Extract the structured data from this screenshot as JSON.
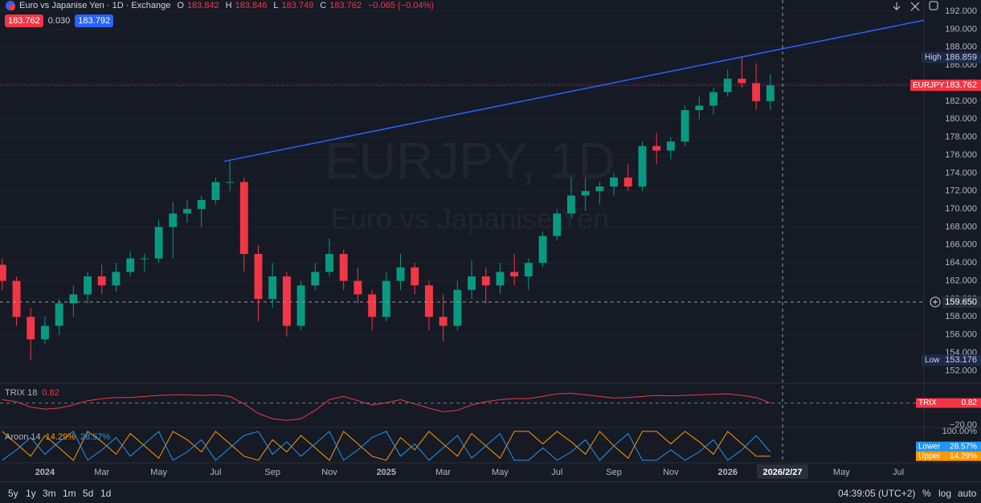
{
  "header": {
    "title": "Euro vs Japanise Yen · 1D · Exchange",
    "ohlc": [
      {
        "k": "O",
        "v": "183.842"
      },
      {
        "k": "H",
        "v": "183.846"
      },
      {
        "k": "L",
        "v": "183.749"
      },
      {
        "k": "C",
        "v": "183.762"
      }
    ],
    "change": "−0.065 (−0.04%)",
    "spread": "0.030",
    "ask": "183.792"
  },
  "watermark": {
    "symbol": "EURJPY, 1D",
    "description": "Euro vs Japanise Yen"
  },
  "toolbar": {
    "ranges": [
      "5y",
      "1y",
      "3m",
      "1m",
      "5d",
      "1d"
    ],
    "clock": "04:39:05 (UTC+2)",
    "options": [
      "%",
      "log",
      "auto"
    ]
  },
  "chart_data": [
    {
      "type": "candlestick",
      "symbol": "EURJPY",
      "x": [
        -1.5,
        -1,
        -0.5,
        0,
        0.5,
        1,
        1.5,
        2,
        2.5,
        3,
        3.5,
        4,
        4.5,
        5,
        5.5,
        6,
        6.5,
        7,
        7.5,
        8,
        8.5,
        9,
        9.5,
        10,
        10.5,
        11,
        11.5,
        12,
        12.5,
        13,
        13.5,
        14,
        14.5,
        15,
        15.5,
        16,
        16.5,
        17,
        17.5,
        18,
        18.5,
        19,
        19.5,
        20,
        20.5,
        21,
        21.5,
        22,
        22.5,
        23,
        23.5,
        24,
        24.5,
        25,
        25.5
      ],
      "open": [
        163.8,
        162,
        158,
        155.5,
        157,
        159.5,
        160.5,
        162.5,
        161.5,
        163,
        164.5,
        164.5,
        168,
        169.5,
        170,
        171,
        173,
        173,
        165,
        160,
        162.5,
        157,
        161.5,
        163,
        165,
        162,
        160.5,
        158,
        162,
        163.5,
        161.5,
        158,
        157,
        161,
        162.5,
        161.5,
        163,
        162.5,
        164,
        167,
        169.5,
        171.5,
        172,
        172.5,
        173.5,
        172.5,
        177,
        176.5,
        177.5,
        181,
        181.5,
        183,
        184.5,
        184,
        182
      ],
      "high": [
        164.5,
        162.5,
        159,
        158,
        160,
        161.5,
        163,
        163.8,
        164,
        165.3,
        165,
        168.8,
        170.8,
        171,
        171.5,
        173.5,
        175.3,
        173.5,
        166,
        164,
        163,
        162,
        164,
        166.7,
        165.5,
        163.5,
        161,
        163,
        165,
        164,
        162,
        160.5,
        162,
        164.3,
        163.5,
        164,
        165,
        164.5,
        167.5,
        170,
        173.5,
        173.5,
        173,
        174,
        175,
        177.5,
        178.5,
        178,
        181.5,
        182.5,
        183.5,
        185.5,
        186.859,
        186.2,
        185
      ],
      "low": [
        161,
        157,
        153.176,
        155,
        156,
        158,
        159.5,
        160.5,
        160.8,
        162.5,
        163,
        164,
        164.5,
        168.5,
        168,
        170.5,
        172,
        163,
        157.5,
        159,
        155.8,
        156.5,
        161,
        162.5,
        161,
        159.5,
        156.5,
        157.5,
        161,
        160.5,
        156.5,
        155.3,
        156.5,
        160,
        159.5,
        160.5,
        161.5,
        161,
        163.5,
        166.5,
        169,
        169.8,
        170.5,
        171.5,
        172,
        172,
        175,
        175.5,
        177,
        180,
        180.5,
        182.5,
        183.5,
        181,
        181
      ],
      "close": [
        162,
        158,
        155.5,
        157,
        159.5,
        160.5,
        162.5,
        161.5,
        163,
        164.5,
        164.5,
        168,
        169.5,
        170,
        171,
        173,
        173,
        165,
        160,
        162.5,
        157,
        161.5,
        163,
        165,
        162,
        160.5,
        158,
        162,
        163.5,
        161.5,
        158,
        157,
        161,
        162.5,
        161.5,
        163,
        162.5,
        164,
        167,
        169.5,
        171.5,
        172,
        172.5,
        173.5,
        172.5,
        177,
        176.5,
        177.5,
        181,
        181.5,
        183,
        184.5,
        184,
        182,
        183.762
      ],
      "up_color": "#089981",
      "down_color": "#f23645",
      "xlim": [
        -1.58,
        30.9
      ],
      "xticks": [
        {
          "value": 0,
          "label": "2024"
        },
        {
          "value": 2,
          "label": "Mar"
        },
        {
          "value": 4,
          "label": "May"
        },
        {
          "value": 6,
          "label": "Jul"
        },
        {
          "value": 8,
          "label": "Sep"
        },
        {
          "value": 10,
          "label": "Nov"
        },
        {
          "value": 12,
          "label": "2025"
        },
        {
          "value": 14,
          "label": "Mar"
        },
        {
          "value": 16,
          "label": "May"
        },
        {
          "value": 18,
          "label": "Jul"
        },
        {
          "value": 20,
          "label": "Sep"
        },
        {
          "value": 22,
          "label": "Nov"
        },
        {
          "value": 24,
          "label": "2026"
        },
        {
          "value": 28,
          "label": "May"
        },
        {
          "value": 30,
          "label": "Jul"
        }
      ],
      "ylim": [
        150.7,
        193.25
      ],
      "yticks": [
        {
          "value": 152,
          "label": "152.000"
        },
        {
          "value": 154,
          "label": "154.000"
        },
        {
          "value": 156,
          "label": "156.000"
        },
        {
          "value": 158,
          "label": "158.000"
        },
        {
          "value": 160,
          "label": "160.000"
        },
        {
          "value": 162,
          "label": "162.000"
        },
        {
          "value": 164,
          "label": "164.000"
        },
        {
          "value": 166,
          "label": "166.000"
        },
        {
          "value": 168,
          "label": "168.000"
        },
        {
          "value": 170,
          "label": "170.000"
        },
        {
          "value": 172,
          "label": "172.000"
        },
        {
          "value": 174,
          "label": "174.000"
        },
        {
          "value": 176,
          "label": "176.000"
        },
        {
          "value": 178,
          "label": "178.000"
        },
        {
          "value": 180,
          "label": "180.000"
        },
        {
          "value": 182,
          "label": "182.000"
        },
        {
          "value": 184,
          "label": "184.000"
        },
        {
          "value": 186,
          "label": "186.000"
        },
        {
          "value": 188,
          "label": "188.000"
        },
        {
          "value": 190,
          "label": "190.000"
        },
        {
          "value": 192,
          "label": "192.000"
        }
      ],
      "grid": true,
      "trendline": {
        "x": [
          6.3,
          30.9
        ],
        "y": [
          175.3,
          191.0
        ],
        "color": "#2962ff"
      },
      "markers": [
        {
          "name": "High",
          "value": 186.859
        },
        {
          "name": "Low",
          "value": 153.176
        }
      ],
      "last_label": "EURJPY",
      "crosshair": {
        "x": {
          "value": 25.93,
          "label": "2026/2/27"
        },
        "y": {
          "value": 159.65,
          "label": "159.650"
        }
      }
    },
    {
      "type": "line",
      "title": "TRIX 18",
      "series": [
        {
          "name": "TRIX",
          "color": "#f23645",
          "values": [
            4,
            2,
            -3,
            -5,
            -4,
            -1,
            3,
            5,
            6,
            6,
            7,
            8,
            8.5,
            8.5,
            8,
            8.5,
            7,
            0,
            -9,
            -14,
            -15.5,
            -14,
            -6,
            4,
            7,
            3,
            -1,
            1,
            4,
            0,
            -4,
            -7.5,
            -6,
            -1,
            2,
            4,
            5,
            5,
            7,
            9.5,
            10,
            8.5,
            7,
            5.5,
            6,
            7,
            8,
            7.5,
            8,
            8.5,
            9,
            9.5,
            8,
            6,
            0.82
          ]
        }
      ],
      "ylim": [
        -21.5,
        18.7
      ],
      "yticks": [
        {
          "value": -20,
          "label": "−20.00"
        }
      ]
    },
    {
      "type": "line",
      "title": "Aroon 14",
      "series": [
        {
          "name": "Upper",
          "color": "#ff9800",
          "last_label": "14.29%",
          "values": [
            100,
            57,
            14,
            86,
            43,
            0,
            100,
            64,
            21,
            93,
            50,
            7,
            100,
            71,
            29,
            100,
            57,
            14,
            0,
            71,
            29,
            86,
            43,
            0,
            100,
            57,
            14,
            0,
            79,
            36,
            100,
            57,
            14,
            93,
            50,
            7,
            100,
            100,
            57,
            100,
            64,
            21,
            100,
            50,
            7,
            100,
            100,
            57,
            100,
            64,
            21,
            100,
            57,
            14,
            14.29
          ]
        },
        {
          "name": "Lower",
          "color": "#2196f3",
          "last_label": "28.57%",
          "values": [
            0,
            36,
            79,
            21,
            64,
            100,
            0,
            36,
            79,
            14,
            57,
            100,
            0,
            29,
            71,
            0,
            43,
            86,
            100,
            21,
            64,
            14,
            57,
            100,
            0,
            36,
            79,
            100,
            14,
            57,
            0,
            43,
            86,
            7,
            50,
            93,
            0,
            0,
            43,
            0,
            29,
            71,
            0,
            50,
            93,
            0,
            0,
            36,
            0,
            29,
            71,
            0,
            36,
            86,
            28.57
          ]
        }
      ],
      "ylim": [
        -9,
        111
      ],
      "yticks": [
        {
          "value": 100,
          "label": "100.00%"
        }
      ]
    }
  ]
}
